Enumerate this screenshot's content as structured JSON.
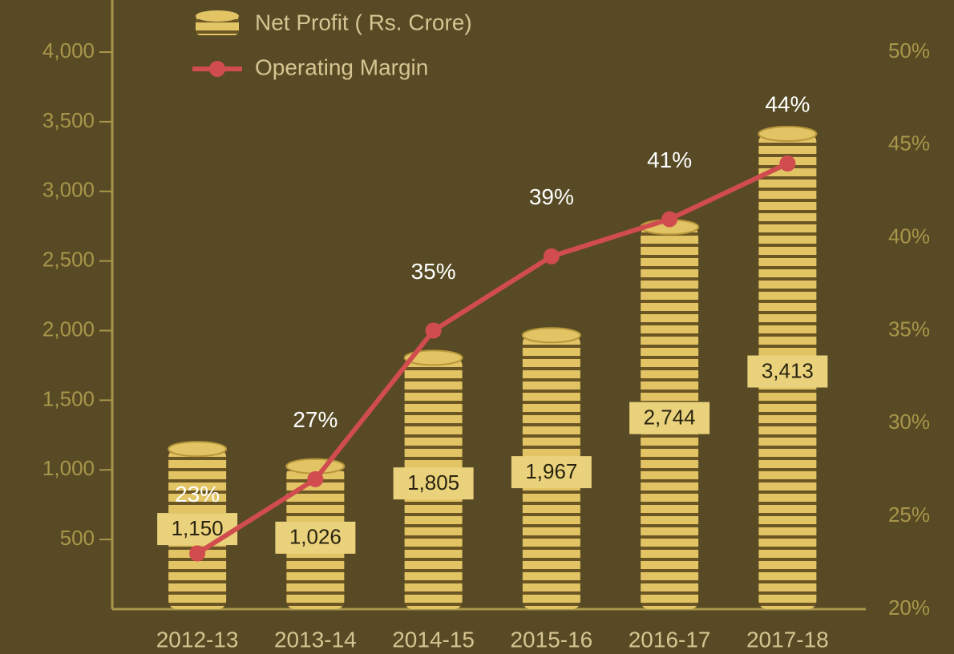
{
  "chart_data": {
    "type": "bar",
    "categories": [
      "2012-13",
      "2013-14",
      "2014-15",
      "2015-16",
      "2016-17",
      "2017-18"
    ],
    "series": [
      {
        "name": "Net Profit ( Rs. Crore)",
        "color": "#e2c464",
        "values": [
          1150,
          1026,
          1805,
          1967,
          2744,
          3413
        ],
        "value_labels": [
          "1,150",
          "1,026",
          "1,805",
          "1,967",
          "2,744",
          "3,413"
        ]
      },
      {
        "name": "Operating Margin",
        "color": "#d04c4e",
        "axis": "y2",
        "values": [
          23,
          27,
          35,
          39,
          41,
          44
        ],
        "value_labels": [
          "23%",
          "27%",
          "35%",
          "39%",
          "41%",
          "44%"
        ]
      }
    ],
    "ylim": [
      0,
      4000
    ],
    "yticks": [
      500,
      {
        "value": 1000,
        "label": "1,000"
      },
      {
        "value": 1500,
        "label": "1,500"
      },
      {
        "value": 2000,
        "label": "2,000"
      },
      {
        "value": 2500,
        "label": "2,500"
      },
      {
        "value": 3000,
        "label": "3,000"
      },
      {
        "value": 3500,
        "label": "3,500"
      },
      {
        "value": 4000,
        "label": "4,000"
      }
    ],
    "y2lim": [
      20,
      50
    ],
    "y2ticks": [
      {
        "value": 20,
        "label": "20%"
      },
      {
        "value": 25,
        "label": "25%"
      },
      {
        "value": 30,
        "label": "30%"
      },
      {
        "value": 35,
        "label": "35%"
      },
      {
        "value": 40,
        "label": "40%"
      },
      {
        "value": 45,
        "label": "45%"
      },
      {
        "value": 50,
        "label": "50%"
      }
    ],
    "legend": "top-left"
  }
}
